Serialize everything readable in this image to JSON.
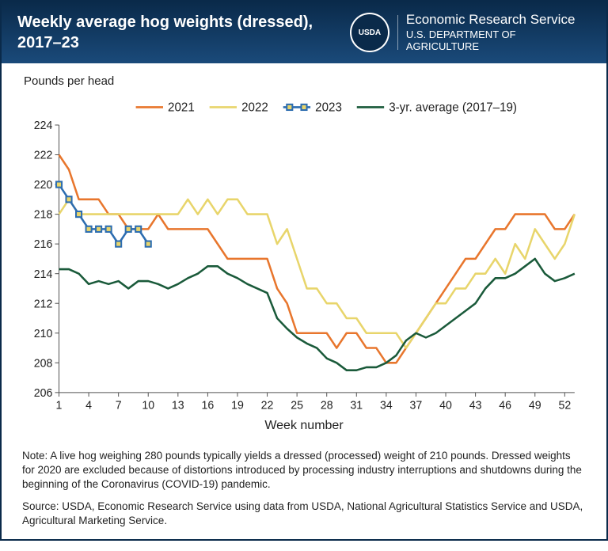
{
  "header": {
    "title": "Weekly average hog weights (dressed), 2017–23",
    "logo_text": "USDA",
    "ers_line1": "Economic Research Service",
    "ers_line2": "U.S. DEPARTMENT OF AGRICULTURE"
  },
  "chart": {
    "type": "line",
    "ylabel": "Pounds per head",
    "xlabel": "Week number",
    "xlim": [
      1,
      53
    ],
    "ylim": [
      206,
      224
    ],
    "yticks": [
      206,
      208,
      210,
      212,
      214,
      216,
      218,
      220,
      222,
      224
    ],
    "xticks": [
      1,
      4,
      7,
      10,
      13,
      16,
      19,
      22,
      25,
      28,
      31,
      34,
      37,
      40,
      43,
      46,
      49,
      52
    ],
    "background_color": "#ffffff",
    "axis_color": "#555555",
    "label_fontsize": 15,
    "tick_fontsize": 14,
    "line_width": 2.5,
    "series": [
      {
        "name": "2021",
        "color": "#e8762d",
        "marker": "none",
        "weeks": [
          1,
          2,
          3,
          4,
          5,
          6,
          7,
          8,
          9,
          10,
          11,
          12,
          13,
          14,
          15,
          16,
          17,
          18,
          19,
          20,
          21,
          22,
          23,
          24,
          25,
          26,
          27,
          28,
          29,
          30,
          31,
          32,
          33,
          34,
          35,
          36,
          37,
          38,
          39,
          40,
          41,
          42,
          43,
          44,
          45,
          46,
          47,
          48,
          49,
          50,
          51,
          52,
          53
        ],
        "values": [
          222,
          221,
          219,
          219,
          219,
          218,
          218,
          217,
          217,
          217,
          218,
          217,
          217,
          217,
          217,
          217,
          216,
          215,
          215,
          215,
          215,
          215,
          213,
          212,
          210,
          210,
          210,
          210,
          209,
          210,
          210,
          209,
          209,
          208,
          208,
          209,
          210,
          211,
          212,
          213,
          214,
          215,
          215,
          216,
          217,
          217,
          218,
          218,
          218,
          218,
          217,
          217,
          218
        ]
      },
      {
        "name": "2022",
        "color": "#e8d56b",
        "marker": "none",
        "weeks": [
          1,
          2,
          3,
          4,
          5,
          6,
          7,
          8,
          9,
          10,
          11,
          12,
          13,
          14,
          15,
          16,
          17,
          18,
          19,
          20,
          21,
          22,
          23,
          24,
          25,
          26,
          27,
          28,
          29,
          30,
          31,
          32,
          33,
          34,
          35,
          36,
          37,
          38,
          39,
          40,
          41,
          42,
          43,
          44,
          45,
          46,
          47,
          48,
          49,
          50,
          51,
          52,
          53
        ],
        "values": [
          218,
          219,
          218,
          218,
          218,
          218,
          218,
          218,
          218,
          218,
          218,
          218,
          218,
          219,
          218,
          219,
          218,
          219,
          219,
          218,
          218,
          218,
          216,
          217,
          215,
          213,
          213,
          212,
          212,
          211,
          211,
          210,
          210,
          210,
          210,
          209,
          210,
          211,
          212,
          212,
          213,
          213,
          214,
          214,
          215,
          214,
          216,
          215,
          217,
          216,
          215,
          216,
          218
        ]
      },
      {
        "name": "2023",
        "color": "#2d6db0",
        "marker": "square",
        "marker_size": 7,
        "marker_fill": "#e8d56b",
        "weeks": [
          1,
          2,
          3,
          4,
          5,
          6,
          7,
          8,
          9,
          10
        ],
        "values": [
          220,
          219,
          218,
          217,
          217,
          217,
          216,
          217,
          217,
          216
        ]
      },
      {
        "name": "3-yr. average (2017–19)",
        "color": "#1a5a3a",
        "marker": "none",
        "weeks": [
          1,
          2,
          3,
          4,
          5,
          6,
          7,
          8,
          9,
          10,
          11,
          12,
          13,
          14,
          15,
          16,
          17,
          18,
          19,
          20,
          21,
          22,
          23,
          24,
          25,
          26,
          27,
          28,
          29,
          30,
          31,
          32,
          33,
          34,
          35,
          36,
          37,
          38,
          39,
          40,
          41,
          42,
          43,
          44,
          45,
          46,
          47,
          48,
          49,
          50,
          51,
          52,
          53
        ],
        "values": [
          214.3,
          214.3,
          214,
          213.3,
          213.5,
          213.3,
          213.5,
          213,
          213.5,
          213.5,
          213.3,
          213,
          213.3,
          213.7,
          214,
          214.5,
          214.5,
          214,
          213.7,
          213.3,
          213,
          212.7,
          211,
          210.3,
          209.7,
          209.3,
          209,
          208.3,
          208,
          207.5,
          207.5,
          207.7,
          207.7,
          208,
          208.5,
          209.5,
          210,
          209.7,
          210,
          210.5,
          211,
          211.5,
          212,
          213,
          213.7,
          213.7,
          214,
          214.5,
          215,
          214,
          213.5,
          213.7,
          214
        ]
      }
    ],
    "legend": {
      "position": "top-center",
      "items": [
        "2021",
        "2022",
        "2023",
        "3-yr. average (2017–19)"
      ]
    }
  },
  "footer": {
    "note": "Note: A live hog weighing 280 pounds typically yields a dressed (processed) weight of 210 pounds. Dressed weights for 2020 are excluded because of distortions introduced by processing industry interruptions and shutdowns during the beginning of the Coronavirus (COVID-19) pandemic.",
    "source": "Source: USDA, Economic Research Service using data from USDA, National Agricultural Statistics Service and USDA, Agricultural Marketing Service."
  }
}
